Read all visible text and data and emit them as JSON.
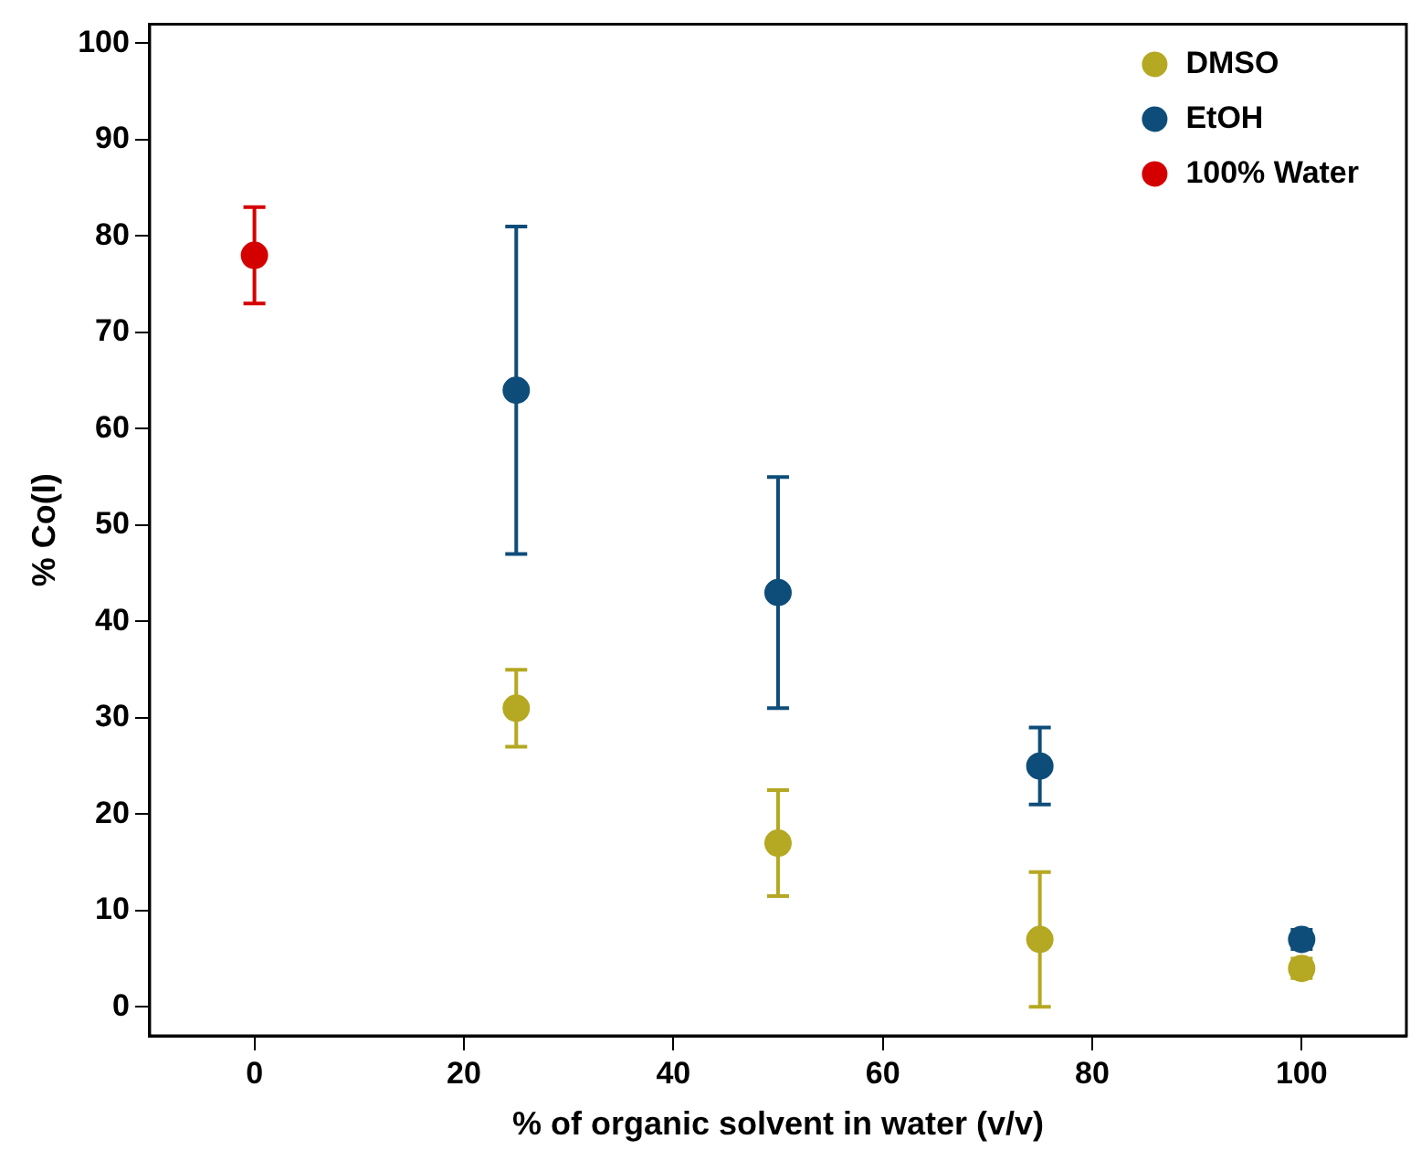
{
  "chart_data": {
    "type": "scatter",
    "xlabel": "% of organic solvent in water (v/v)",
    "ylabel": "% Co(I)",
    "xlim": [
      -10,
      110
    ],
    "xticks": [
      0,
      20,
      40,
      60,
      80,
      100
    ],
    "ylim": [
      -3,
      102
    ],
    "yticks": [
      0,
      10,
      20,
      30,
      40,
      50,
      60,
      70,
      80,
      90,
      100
    ],
    "grid": false,
    "legend": "top right",
    "marker": "circle",
    "series": [
      {
        "name": "DMSO",
        "color": "#b5a822",
        "x": [
          25,
          50,
          75,
          100
        ],
        "values": [
          31,
          17,
          7,
          4
        ],
        "errors": [
          4,
          5.5,
          7,
          1
        ]
      },
      {
        "name": "EtOH",
        "color": "#0e4d7a",
        "x": [
          25,
          50,
          75,
          100
        ],
        "values": [
          64,
          43,
          25,
          7
        ],
        "errors": [
          17,
          12,
          4,
          1
        ]
      },
      {
        "name": "100% Water",
        "color": "#d40000",
        "x": [
          0
        ],
        "values": [
          78
        ],
        "errors": [
          5
        ]
      }
    ]
  }
}
